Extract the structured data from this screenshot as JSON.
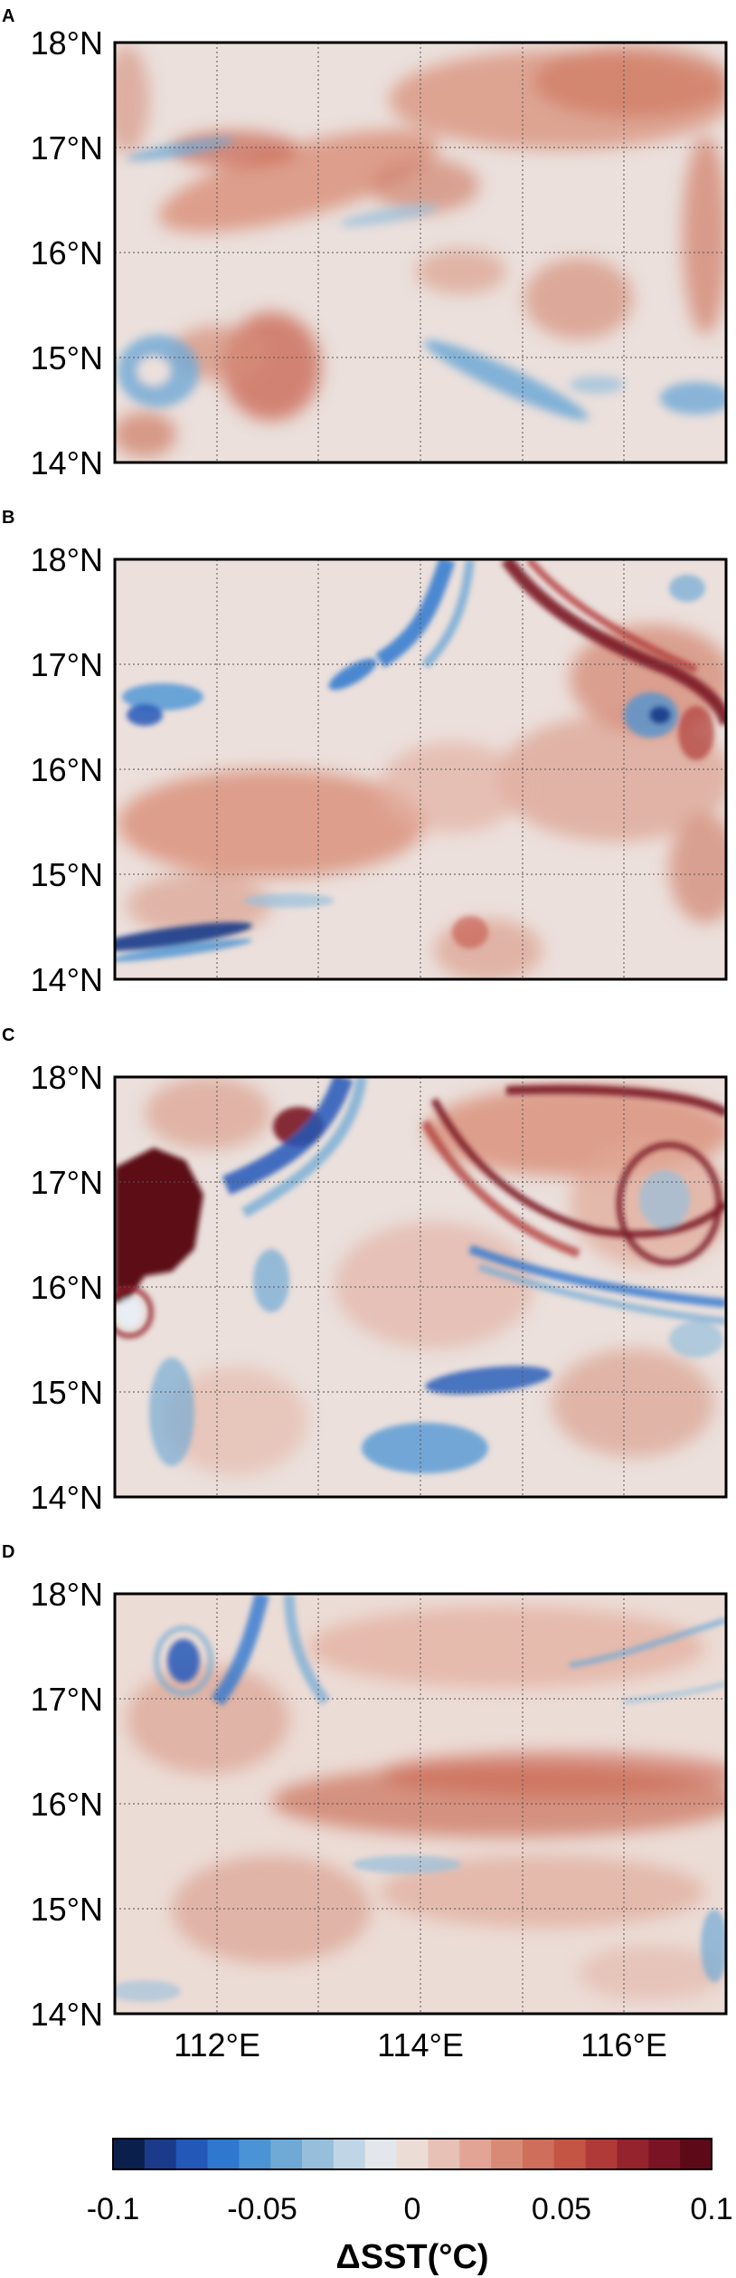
{
  "figure": {
    "panels": [
      {
        "letter": "A",
        "lat_labels": [
          "18°N",
          "17°N",
          "16°N",
          "15°N",
          "14°N"
        ]
      },
      {
        "letter": "B",
        "lat_labels": [
          "18°N",
          "17°N",
          "16°N",
          "15°N",
          "14°N"
        ]
      },
      {
        "letter": "C",
        "lat_labels": [
          "18°N",
          "17°N",
          "16°N",
          "15°N",
          "14°N"
        ]
      },
      {
        "letter": "D",
        "lat_labels": [
          "18°N",
          "17°N",
          "16°N",
          "15°N",
          "14°N"
        ]
      }
    ],
    "lon_labels": [
      "112°E",
      "114°E",
      "116°E"
    ],
    "lat_range": [
      14,
      18
    ],
    "lon_range": [
      111,
      117
    ],
    "colorbar": {
      "title": "ΔSST(°C)",
      "tick_labels": [
        "-0.1",
        "-0.05",
        "0",
        "0.05",
        "0.1"
      ],
      "range": [
        -0.1,
        0.1
      ],
      "colors": [
        "#0b1f4c",
        "#1b3a8a",
        "#2357b8",
        "#2f78cf",
        "#4a93d4",
        "#6fa9d6",
        "#97bfdc",
        "#c0d6e6",
        "#e3e6ea",
        "#ecdcd6",
        "#e8c1b6",
        "#e2a595",
        "#d98a76",
        "#cf6e5a",
        "#c45444",
        "#b03a37",
        "#95232d",
        "#7a1424",
        "#5c0a18"
      ]
    }
  }
}
